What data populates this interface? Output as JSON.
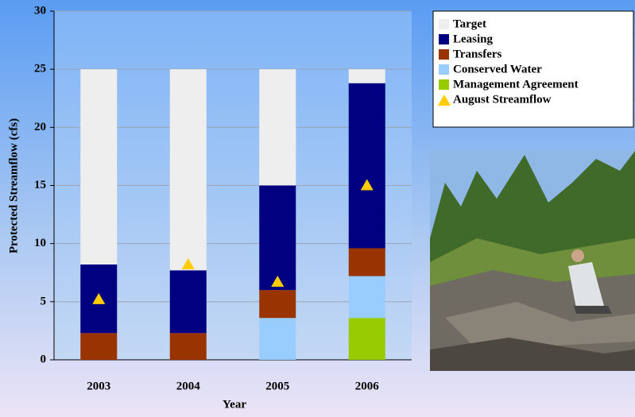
{
  "chart_data": {
    "type": "bar",
    "stacked": true,
    "categories": [
      "2003",
      "2004",
      "2005",
      "2006"
    ],
    "x_label": "Year",
    "y_label": "Protected Streamflow (cfs)",
    "ylim": [
      0,
      30
    ],
    "yticks": [
      0,
      5,
      10,
      15,
      20,
      25,
      30
    ],
    "grid": true,
    "legend": "top-right",
    "series": [
      {
        "name": "Management Agreement",
        "color": "#99cc00",
        "values": [
          0,
          0,
          0,
          3.6
        ]
      },
      {
        "name": "Conserved Water",
        "color": "#99ccff",
        "values": [
          0,
          0,
          3.6,
          3.6
        ]
      },
      {
        "name": "Transfers",
        "color": "#993300",
        "values": [
          2.3,
          2.3,
          2.4,
          2.4
        ]
      },
      {
        "name": "Leasing",
        "color": "#000080",
        "values": [
          5.9,
          5.4,
          9.0,
          14.2
        ]
      },
      {
        "name": "Target",
        "color": "#eeeeee",
        "values": [
          16.8,
          17.3,
          10.0,
          1.2
        ]
      },
      {
        "name": "August Streamflow",
        "color": "#ffcc00",
        "type": "scatter",
        "marker": "triangle",
        "values": [
          5.2,
          8.2,
          6.7,
          15.0
        ]
      }
    ],
    "legend_order": [
      4,
      3,
      2,
      1,
      0,
      5
    ]
  }
}
